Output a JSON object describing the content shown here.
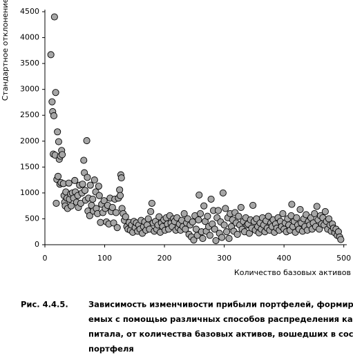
{
  "chart_data": {
    "type": "scatter",
    "y_label": "Стандартное отклонение",
    "x_label": "Количество базовых активов",
    "color": "#a6a6a6",
    "xlim": [
      0,
      505
    ],
    "xticks": [
      0,
      100,
      200,
      300,
      400,
      500
    ],
    "ylim": [
      0,
      4500
    ],
    "yticks": [
      0,
      500,
      1000,
      1500,
      2000,
      2500,
      3000,
      3500,
      4000,
      4500
    ],
    "x": [
      10,
      12,
      13,
      14,
      15,
      16,
      17,
      18,
      19,
      20,
      21,
      22,
      23,
      24,
      25,
      26,
      27,
      28,
      29,
      31,
      32,
      33,
      34,
      35,
      37,
      38,
      40,
      41,
      43,
      44,
      46,
      48,
      50,
      51,
      53,
      55,
      56,
      58,
      60,
      62,
      63,
      65,
      66,
      67,
      68,
      70,
      71,
      72,
      73,
      75,
      76,
      78,
      80,
      81,
      83,
      85,
      86,
      88,
      90,
      91,
      93,
      95,
      97,
      99,
      101,
      103,
      105,
      107,
      109,
      111,
      113,
      115,
      117,
      119,
      121,
      123,
      125,
      126,
      127,
      128,
      129,
      131,
      133,
      135,
      137,
      139,
      141,
      143,
      145,
      147,
      149,
      151,
      153,
      155,
      157,
      159,
      161,
      163,
      165,
      167,
      169,
      171,
      173,
      175,
      177,
      179,
      181,
      183,
      185,
      187,
      189,
      191,
      193,
      195,
      197,
      199,
      201,
      203,
      205,
      207,
      209,
      211,
      213,
      215,
      217,
      219,
      221,
      223,
      225,
      227,
      229,
      231,
      233,
      235,
      237,
      239,
      241,
      243,
      245,
      247,
      249,
      251,
      253,
      255,
      257,
      258,
      260,
      262,
      264,
      266,
      268,
      270,
      272,
      274,
      276,
      278,
      280,
      282,
      284,
      286,
      288,
      290,
      292,
      294,
      296,
      298,
      300,
      302,
      304,
      306,
      308,
      310,
      312,
      314,
      316,
      318,
      320,
      322,
      324,
      326,
      328,
      330,
      332,
      334,
      336,
      338,
      340,
      342,
      344,
      346,
      348,
      350,
      352,
      354,
      356,
      358,
      360,
      362,
      364,
      366,
      368,
      370,
      372,
      374,
      376,
      378,
      380,
      382,
      384,
      386,
      388,
      390,
      392,
      394,
      396,
      398,
      400,
      402,
      404,
      406,
      408,
      410,
      412,
      413,
      415,
      417,
      419,
      421,
      423,
      425,
      427,
      429,
      431,
      433,
      435,
      437,
      439,
      441,
      443,
      445,
      447,
      449,
      451,
      453,
      455,
      457,
      459,
      461,
      463,
      465,
      467,
      469,
      471,
      473,
      475,
      477,
      479,
      481,
      483,
      485,
      487,
      489,
      491,
      493,
      495
    ],
    "values": [
      3670,
      2760,
      2570,
      1750,
      2490,
      4400,
      1730,
      2940,
      800,
      1260,
      2180,
      1320,
      1990,
      1650,
      1170,
      1710,
      1200,
      1820,
      1740,
      1180,
      950,
      820,
      750,
      1020,
      900,
      700,
      1190,
      880,
      980,
      750,
      1000,
      900,
      1240,
      1020,
      820,
      950,
      720,
      1150,
      800,
      1000,
      1170,
      1630,
      1390,
      1050,
      860,
      2010,
      1300,
      650,
      900,
      560,
      1150,
      760,
      880,
      650,
      1250,
      1020,
      700,
      600,
      1130,
      950,
      430,
      780,
      620,
      850,
      700,
      440,
      760,
      400,
      900,
      640,
      720,
      420,
      880,
      620,
      330,
      900,
      1060,
      950,
      1350,
      1290,
      700,
      600,
      470,
      540,
      350,
      300,
      430,
      280,
      380,
      240,
      450,
      330,
      420,
      260,
      380,
      300,
      470,
      220,
      350,
      440,
      280,
      380,
      500,
      300,
      640,
      800,
      420,
      260,
      450,
      300,
      380,
      540,
      240,
      420,
      350,
      480,
      280,
      520,
      400,
      300,
      560,
      420,
      350,
      500,
      450,
      280,
      520,
      330,
      400,
      280,
      470,
      350,
      600,
      300,
      420,
      500,
      200,
      380,
      150,
      440,
      90,
      560,
      300,
      180,
      480,
      960,
      600,
      250,
      120,
      750,
      450,
      260,
      550,
      350,
      180,
      880,
      400,
      660,
      300,
      80,
      520,
      660,
      220,
      440,
      140,
      1000,
      380,
      700,
      250,
      520,
      120,
      600,
      350,
      480,
      260,
      620,
      420,
      200,
      550,
      380,
      720,
      300,
      450,
      250,
      520,
      380,
      400,
      220,
      480,
      320,
      760,
      450,
      280,
      500,
      350,
      230,
      420,
      300,
      520,
      380,
      250,
      460,
      320,
      550,
      280,
      420,
      350,
      480,
      240,
      400,
      320,
      520,
      280,
      450,
      350,
      600,
      300,
      420,
      250,
      500,
      380,
      280,
      560,
      780,
      350,
      450,
      240,
      520,
      380,
      300,
      680,
      420,
      260,
      500,
      350,
      580,
      280,
      450,
      380,
      520,
      300,
      420,
      600,
      350,
      740,
      480,
      300,
      560,
      400,
      520,
      380,
      640,
      450,
      300,
      500,
      380,
      260,
      400,
      320,
      230,
      300,
      180,
      250,
      150,
      100
    ]
  },
  "caption": {
    "label": "Рис. 4.4.5.",
    "lines": [
      "Зависимость изменчивости прибыли портфелей, формиру-",
      "емых с помощью различных способов распределения ка-",
      "питала, от количества базовых активов, вошедших в состав",
      "портфеля"
    ]
  }
}
